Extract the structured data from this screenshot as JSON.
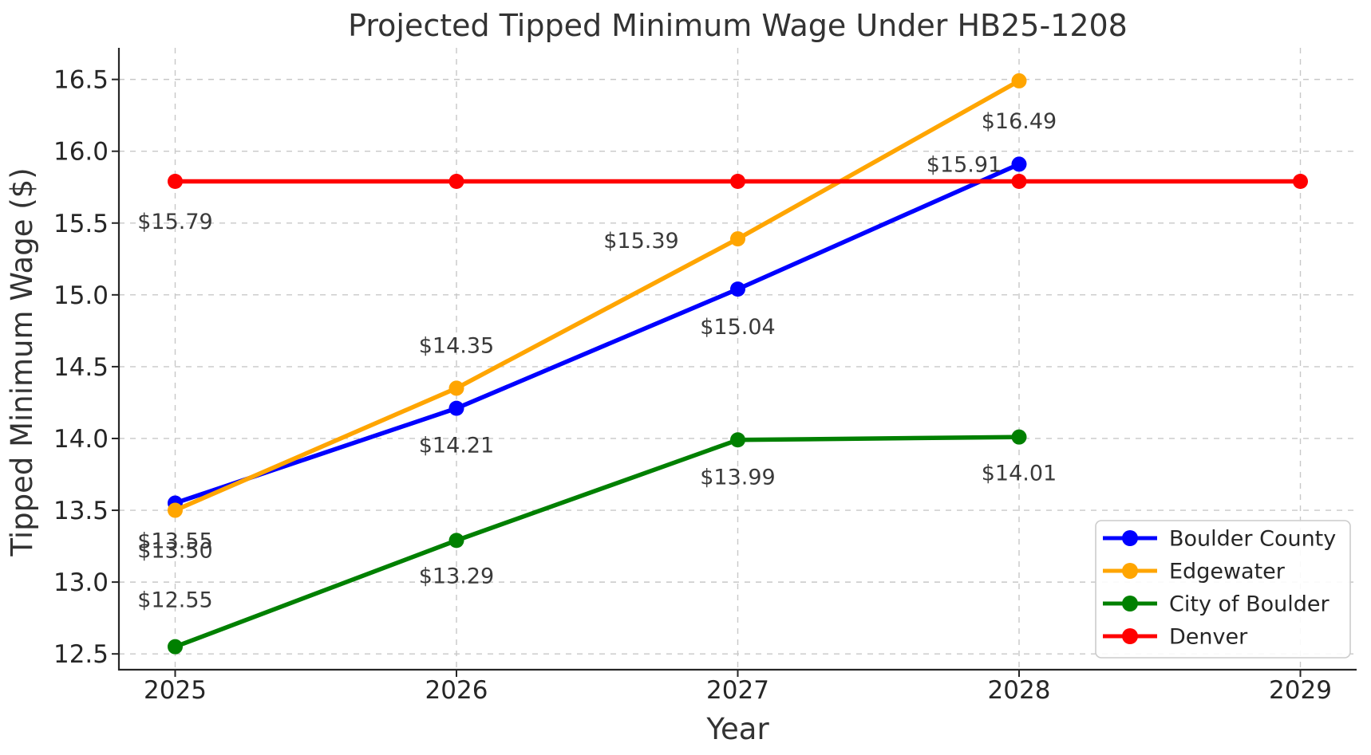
{
  "chart_data": {
    "type": "line",
    "title": "Projected Tipped Minimum Wage Under HB25-1208",
    "xlabel": "Year",
    "ylabel": "Tipped Minimum Wage ($)",
    "x_ticks": [
      "2025",
      "2026",
      "2027",
      "2028",
      "2029"
    ],
    "x_tick_values": [
      2025,
      2026,
      2027,
      2028,
      2029
    ],
    "y_ticks": [
      "12.5",
      "13.0",
      "13.5",
      "14.0",
      "14.5",
      "15.0",
      "15.5",
      "16.0",
      "16.5"
    ],
    "y_tick_values": [
      12.5,
      13.0,
      13.5,
      14.0,
      14.5,
      15.0,
      15.5,
      16.0,
      16.5
    ],
    "xlim": [
      2024.8,
      2029.2
    ],
    "ylim": [
      12.39,
      16.72
    ],
    "grid": true,
    "grid_style": "dashed",
    "legend_position": "lower-right",
    "series": [
      {
        "name": "Boulder County",
        "color": "#0000ff",
        "x": [
          2025,
          2026,
          2027,
          2028
        ],
        "values": [
          13.55,
          14.21,
          15.04,
          15.91
        ],
        "point_labels": [
          "$13.55",
          "$14.21",
          "$15.04",
          "$15.91"
        ],
        "label_offsets": [
          [
            0,
            47
          ],
          [
            0,
            46
          ],
          [
            0,
            47
          ],
          [
            -69,
            0
          ]
        ]
      },
      {
        "name": "Edgewater",
        "color": "#ffa500",
        "x": [
          2025,
          2026,
          2027,
          2028
        ],
        "values": [
          13.5,
          14.35,
          15.39,
          16.49
        ],
        "point_labels": [
          "$13.50",
          "$14.35",
          "$15.39",
          "$16.49"
        ],
        "label_offsets": [
          [
            0,
            50
          ],
          [
            0,
            -54
          ],
          [
            -121,
            2
          ],
          [
            0,
            50
          ]
        ]
      },
      {
        "name": "City of Boulder",
        "color": "#008000",
        "x": [
          2025,
          2026,
          2027,
          2028
        ],
        "values": [
          12.55,
          13.29,
          13.99,
          14.01
        ],
        "point_labels": [
          "$12.55",
          "$13.29",
          "$13.99",
          "$14.01"
        ],
        "label_offsets": [
          [
            0,
            -59
          ],
          [
            0,
            44
          ],
          [
            0,
            46
          ],
          [
            0,
            45
          ]
        ]
      },
      {
        "name": "Denver",
        "color": "#ff0000",
        "x": [
          2025,
          2026,
          2027,
          2028,
          2029
        ],
        "values": [
          15.79,
          15.79,
          15.79,
          15.79,
          15.79
        ],
        "point_labels": [
          "$15.79",
          "",
          "",
          "",
          ""
        ],
        "label_offsets": [
          [
            0,
            50
          ],
          [
            0,
            0
          ],
          [
            0,
            0
          ],
          [
            0,
            0
          ],
          [
            0,
            0
          ]
        ]
      }
    ],
    "colors": {
      "grid": "#c8c8c8",
      "spine": "#262626",
      "tick_label": "#262626",
      "title": "#333333",
      "annotation": "#3a3a3a",
      "legend_border": "#cccccc",
      "legend_bg": "#ffffff"
    }
  }
}
